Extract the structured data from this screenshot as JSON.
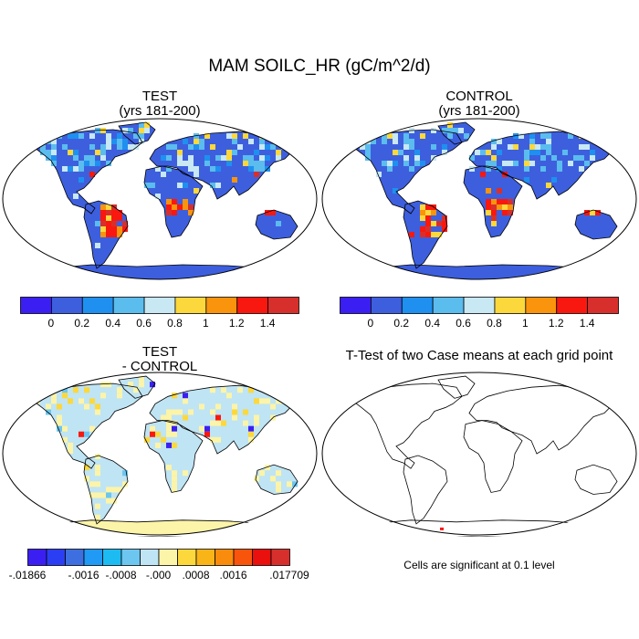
{
  "title": "MAM SOILC_HR (gC/m^2/d)",
  "panels": [
    {
      "id": "test",
      "title_line1": "TEST",
      "title_line2": "(yrs 181-200)"
    },
    {
      "id": "control",
      "title_line1": "CONTROL",
      "title_line2": "(yrs 181-200)"
    },
    {
      "id": "diff",
      "title_line1": "TEST",
      "title_line2": "- CONTROL"
    },
    {
      "id": "ttest",
      "title_line1": "T-Test of two Case means at each grid point",
      "title_line2": ""
    }
  ],
  "colorbars": {
    "main": {
      "colors": [
        "#3b1ff2",
        "#3d5fde",
        "#1f90f0",
        "#5bbcee",
        "#c8e8f4",
        "#fcd83c",
        "#f9940c",
        "#f9180f",
        "#d7302c"
      ],
      "labels": [
        "0",
        "0.2",
        "0.4",
        "0.6",
        "0.8",
        "1",
        "1.2",
        "1.4"
      ]
    },
    "diff": {
      "colors": [
        "#3b1ff2",
        "#2c3ef4",
        "#3d6fe0",
        "#209af4",
        "#1cbcf2",
        "#6cc6f0",
        "#bfe4f4",
        "#fcf4a8",
        "#fcd83c",
        "#f9b418",
        "#f98c0c",
        "#f9540c",
        "#e9100d",
        "#d7302c"
      ],
      "labels": [
        "-.01866",
        "-.0016",
        "-.0008",
        "-.000",
        ".0008",
        ".0016",
        ".017709"
      ]
    }
  },
  "note": "Cells are significant at 0.1 level"
}
